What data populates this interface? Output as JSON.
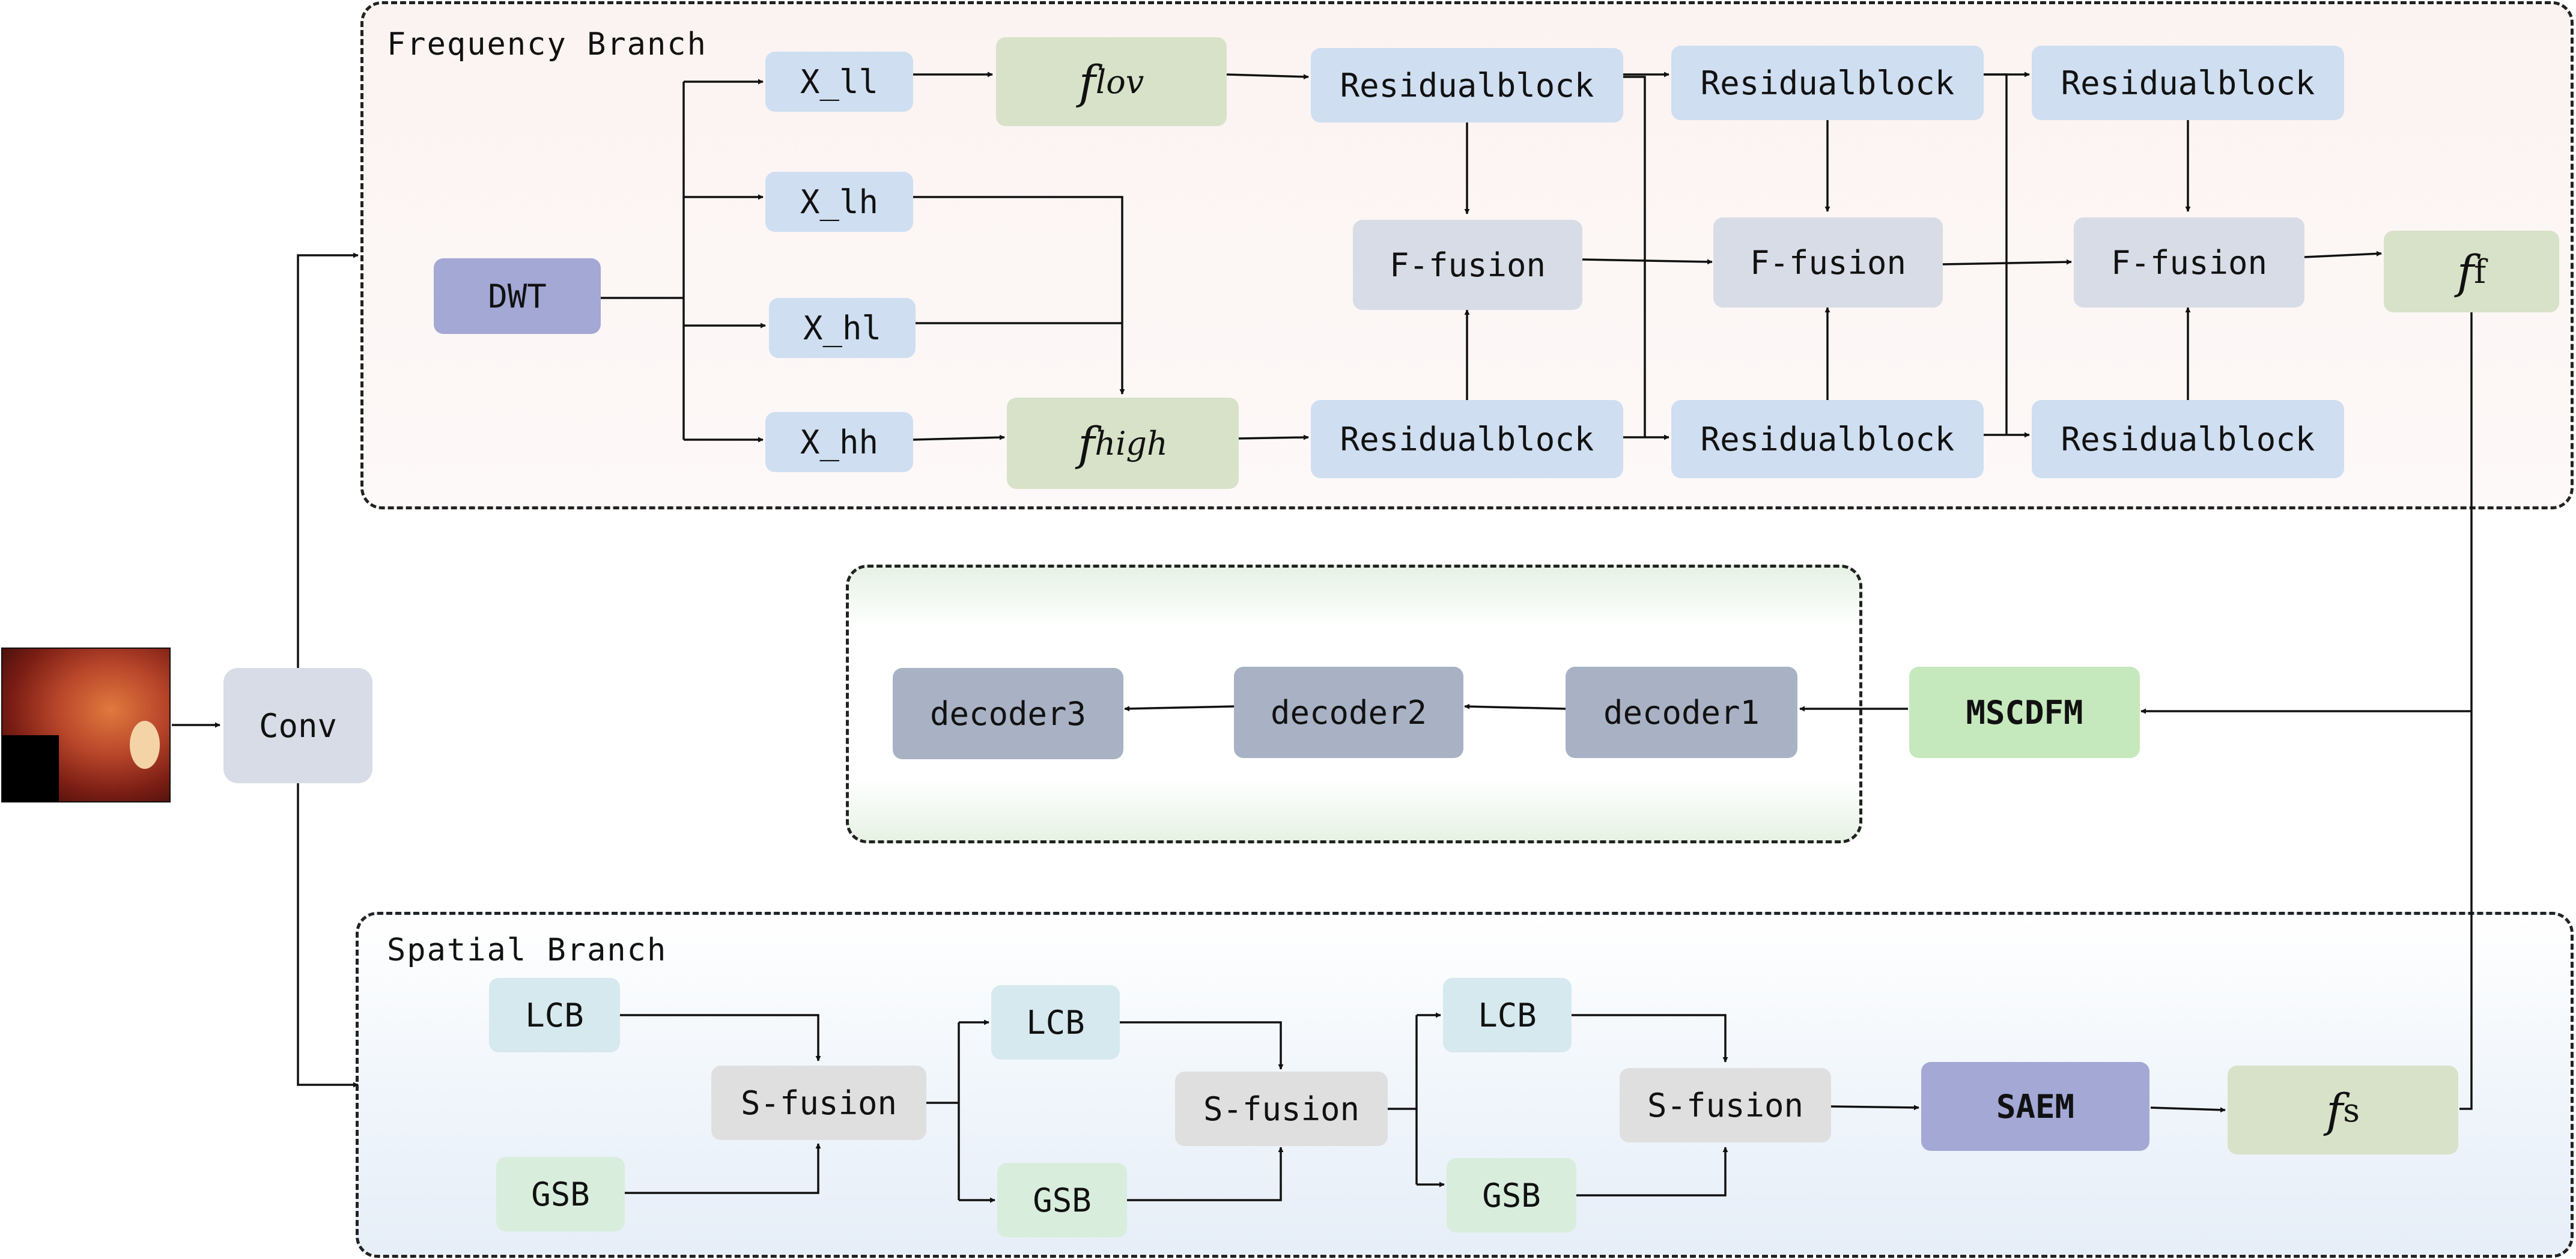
{
  "frequency_branch": {
    "title": "Frequency Branch",
    "dwt": "DWT",
    "subbands": [
      "X_ll",
      "X_lh",
      "X_hl",
      "X_hh"
    ],
    "f_low": {
      "base": "f",
      "sub": "lov"
    },
    "f_high": {
      "base": "f",
      "sub": "high"
    },
    "residual_label": "Residualblock",
    "ffusion_label": "F-fusion",
    "f_f": {
      "base": "f",
      "sub": "f"
    }
  },
  "spatial_branch": {
    "title": "Spatial Branch",
    "lcb_label": "LCB",
    "gsb_label": "GSB",
    "sfusion_label": "S-fusion",
    "saem": "SAEM",
    "f_s": {
      "base": "f",
      "sub": "s"
    }
  },
  "decoder": {
    "mscdfm": "MSCDFM",
    "labels": [
      "decoder3",
      "decoder2",
      "decoder1"
    ]
  },
  "input": {
    "conv": "Conv",
    "image_icon": "endoscopy-image"
  },
  "colors": {
    "blue_box": "#cfdef1",
    "gray_box": "#d8dce6",
    "green_box": "#d7e2c8",
    "dwt": "#a3a8d5",
    "mscdfm": "#c6e8bd",
    "decoder": "#a8b2c4"
  }
}
